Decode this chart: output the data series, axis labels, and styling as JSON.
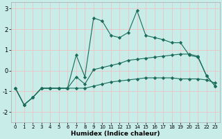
{
  "xlabel": "Humidex (Indice chaleur)",
  "background_color": "#c8ece8",
  "grid_color": "#e8c8c8",
  "line_color": "#1a6b5a",
  "x": [
    0,
    1,
    2,
    3,
    4,
    5,
    6,
    7,
    8,
    9,
    10,
    11,
    12,
    13,
    14,
    15,
    16,
    17,
    18,
    19,
    20,
    21,
    22,
    23
  ],
  "line1": [
    -0.85,
    -1.65,
    -1.3,
    -0.85,
    -0.85,
    -0.85,
    -0.85,
    0.75,
    -0.3,
    2.55,
    2.4,
    1.7,
    1.6,
    1.85,
    2.9,
    1.7,
    1.6,
    1.5,
    1.35,
    1.35,
    0.75,
    0.65,
    -0.25,
    -0.75
  ],
  "line2": [
    -0.85,
    -1.65,
    -1.3,
    -0.85,
    -0.85,
    -0.85,
    -0.85,
    -0.85,
    -0.85,
    -0.75,
    -0.65,
    -0.55,
    -0.5,
    -0.45,
    -0.4,
    -0.35,
    -0.35,
    -0.35,
    -0.35,
    -0.4,
    -0.4,
    -0.4,
    -0.45,
    -0.6
  ],
  "line3": [
    -0.85,
    -1.65,
    -1.3,
    -0.85,
    -0.85,
    -0.85,
    -0.85,
    -0.3,
    -0.65,
    0.05,
    0.15,
    0.25,
    0.35,
    0.5,
    0.55,
    0.6,
    0.65,
    0.7,
    0.75,
    0.8,
    0.8,
    0.7,
    -0.25,
    -0.75
  ],
  "ylim": [
    -2.5,
    3.3
  ],
  "xlim": [
    -0.5,
    23.5
  ],
  "yticks": [
    -2,
    -1,
    0,
    1,
    2,
    3
  ],
  "xticks": [
    0,
    1,
    2,
    3,
    4,
    5,
    6,
    7,
    8,
    9,
    10,
    11,
    12,
    13,
    14,
    15,
    16,
    17,
    18,
    19,
    20,
    21,
    22,
    23
  ]
}
